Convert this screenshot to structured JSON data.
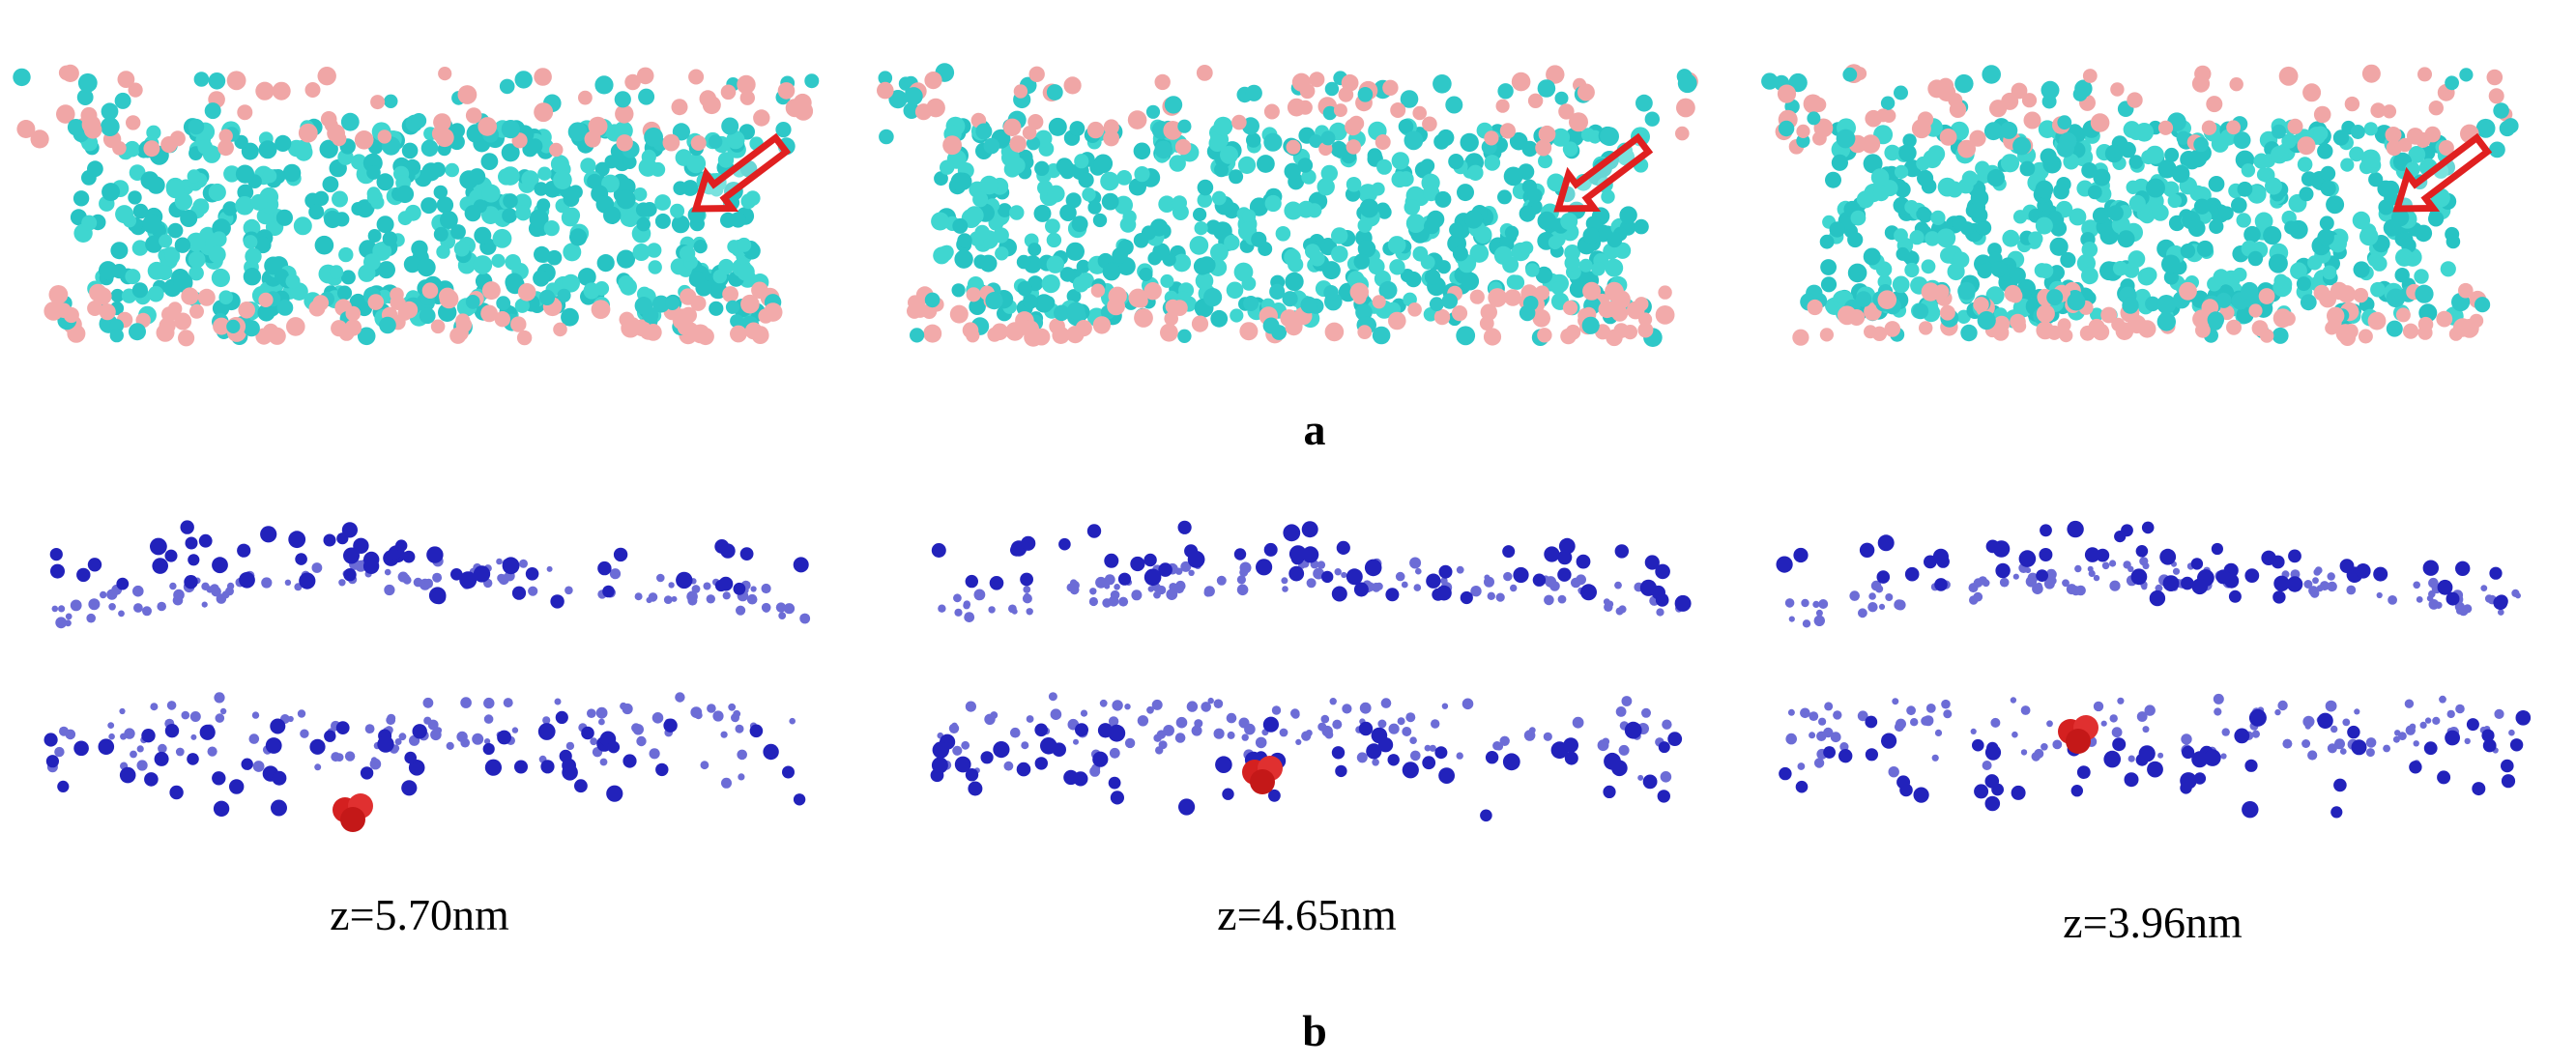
{
  "panel_a": {
    "label": "a"
  },
  "panel_b": {
    "label": "b",
    "captions": [
      "z=5.70nm",
      "z=4.65nm",
      "z=3.96nm"
    ]
  }
}
